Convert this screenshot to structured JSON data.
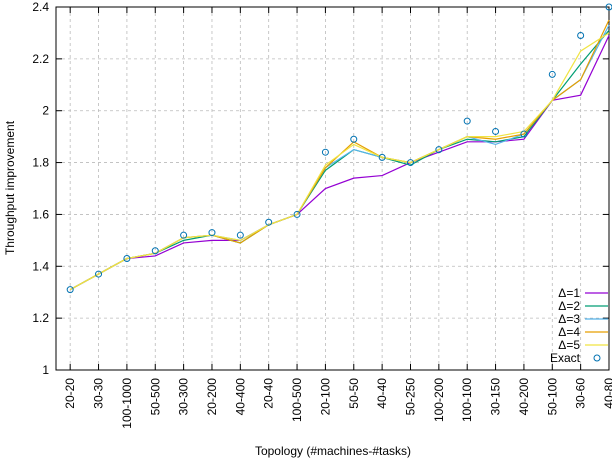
{
  "chart_data": {
    "type": "line",
    "x_label": "Topology (#machines-#tasks)",
    "y_label": "Throughput improvement",
    "categories": [
      "20-20",
      "30-30",
      "100-1000",
      "50-500",
      "30-300",
      "20-200",
      "40-400",
      "20-40",
      "100-500",
      "20-100",
      "50-50",
      "40-40",
      "50-250",
      "100-200",
      "100-100",
      "30-150",
      "40-200",
      "50-100",
      "30-60",
      "40-80"
    ],
    "ylim": [
      1,
      2.4
    ],
    "yticks": [
      1,
      1.2,
      1.4,
      1.6,
      1.8,
      2,
      2.2,
      2.4
    ],
    "grid": true,
    "legend": "bottom-right",
    "series": [
      {
        "name": "Δ=1",
        "color": "#9400d3",
        "values": [
          1.31,
          1.37,
          1.43,
          1.44,
          1.49,
          1.5,
          1.5,
          1.56,
          1.6,
          1.7,
          1.74,
          1.75,
          1.8,
          1.84,
          1.88,
          1.88,
          1.89,
          2.04,
          2.06,
          2.29
        ]
      },
      {
        "name": "Δ=2",
        "color": "#009e73",
        "values": [
          1.31,
          1.37,
          1.43,
          1.45,
          1.5,
          1.52,
          1.49,
          1.56,
          1.6,
          1.77,
          1.85,
          1.82,
          1.79,
          1.85,
          1.89,
          1.88,
          1.9,
          2.04,
          2.18,
          2.31
        ]
      },
      {
        "name": "Δ=3",
        "color": "#56b4e9",
        "values": [
          1.31,
          1.37,
          1.43,
          1.45,
          1.51,
          1.52,
          1.5,
          1.56,
          1.6,
          1.78,
          1.85,
          1.82,
          1.8,
          1.85,
          1.9,
          1.87,
          1.91,
          2.04,
          2.12,
          2.33
        ]
      },
      {
        "name": "Δ=4",
        "color": "#e69f00",
        "values": [
          1.31,
          1.37,
          1.43,
          1.45,
          1.51,
          1.52,
          1.49,
          1.56,
          1.6,
          1.78,
          1.88,
          1.82,
          1.8,
          1.85,
          1.9,
          1.89,
          1.91,
          2.04,
          2.12,
          2.35
        ]
      },
      {
        "name": "Δ=5",
        "color": "#f0e442",
        "values": [
          1.31,
          1.37,
          1.43,
          1.45,
          1.51,
          1.52,
          1.5,
          1.56,
          1.6,
          1.79,
          1.87,
          1.82,
          1.8,
          1.85,
          1.9,
          1.9,
          1.92,
          2.04,
          2.23,
          2.3
        ]
      },
      {
        "name": "Exact",
        "color": "#0072b2",
        "marker": "circle",
        "values": [
          1.31,
          1.37,
          1.43,
          1.46,
          1.52,
          1.53,
          1.52,
          1.57,
          1.6,
          1.84,
          1.89,
          1.82,
          1.8,
          1.85,
          1.96,
          1.92,
          1.91,
          2.14,
          2.29,
          2.4
        ]
      }
    ]
  }
}
